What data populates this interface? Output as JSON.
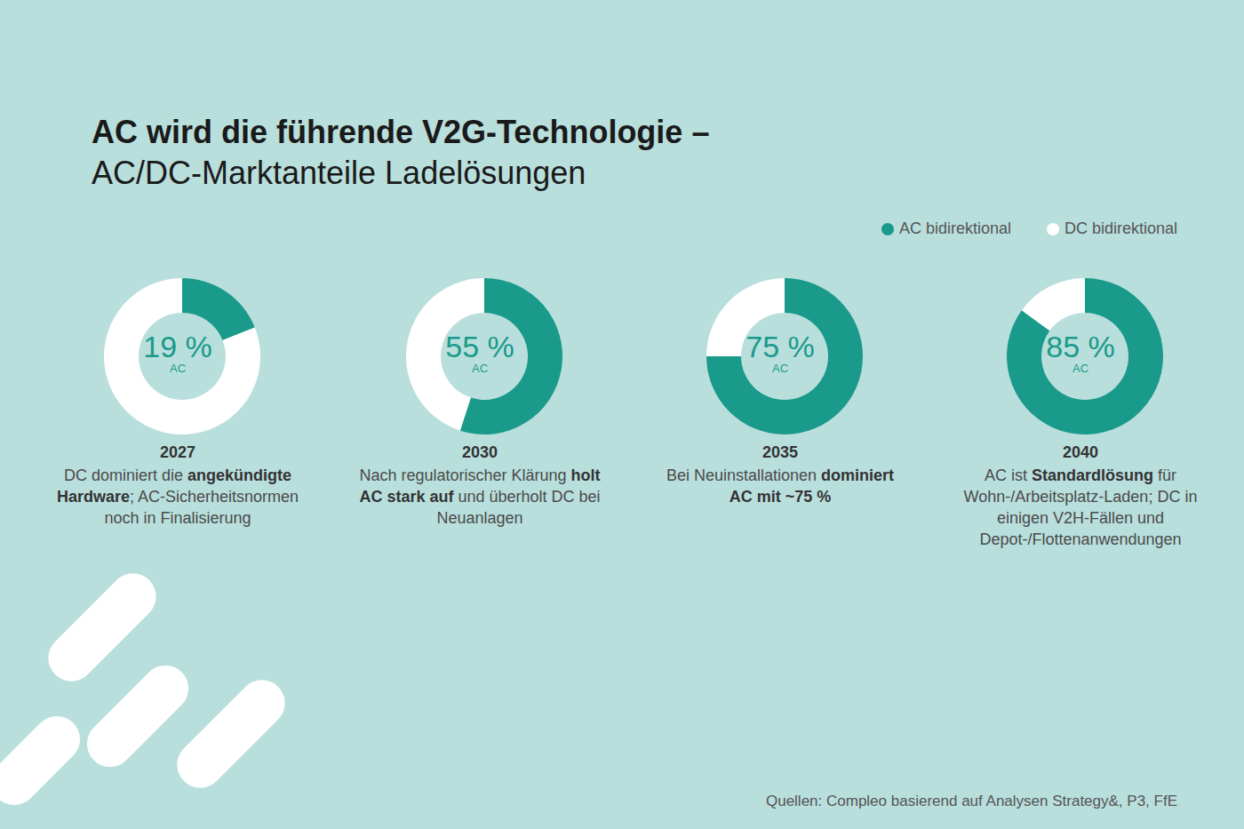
{
  "title": "AC wird die führende V2G-Technologie –",
  "subtitle": "AC/DC-Marktanteile Ladelösungen",
  "legend": "top-right",
  "source": "Quellen: Compleo basierend auf Analysen Strategy&, P3, FfE",
  "chart_data": [
    {
      "type": "pie",
      "title": "2027",
      "categories": [
        "AC bidirektional",
        "DC bidirektional"
      ],
      "values": [
        19,
        81
      ],
      "colors": [
        "#1a9a8a",
        "#ffffff"
      ],
      "center_text": "19 %",
      "center_subtext": "AC",
      "caption": [
        "DC dominiert die ",
        "angekündigte Hardware",
        "; AC-Sicherheitsnormen noch in Finalisierung"
      ]
    },
    {
      "type": "pie",
      "title": "2030",
      "categories": [
        "AC bidirektional",
        "DC bidirektional"
      ],
      "values": [
        55,
        45
      ],
      "colors": [
        "#1a9a8a",
        "#ffffff"
      ],
      "center_text": "55 %",
      "center_subtext": "AC",
      "caption": [
        "Nach regulatorischer Klärung ",
        "holt AC stark auf",
        " und überholt DC bei Neuanlagen"
      ]
    },
    {
      "type": "pie",
      "title": "2035",
      "categories": [
        "AC bidirektional",
        "DC bidirektional"
      ],
      "values": [
        75,
        25
      ],
      "colors": [
        "#1a9a8a",
        "#ffffff"
      ],
      "center_text": "75 %",
      "center_subtext": "AC",
      "caption": [
        "Bei Neuinstallationen ",
        "dominiert AC mit ~75 %"
      ]
    },
    {
      "type": "pie",
      "title": "2040",
      "categories": [
        "AC bidirektional",
        "DC bidirektional"
      ],
      "values": [
        85,
        15
      ],
      "colors": [
        "#1a9a8a",
        "#ffffff"
      ],
      "center_text": "85 %",
      "center_subtext": "AC",
      "caption": [
        "AC ist ",
        "Standardlösung",
        " für Wohn-/Arbeitsplatz-Laden; DC in einigen V2H-Fällen und Depot-/Flottenanwendungen"
      ]
    }
  ]
}
